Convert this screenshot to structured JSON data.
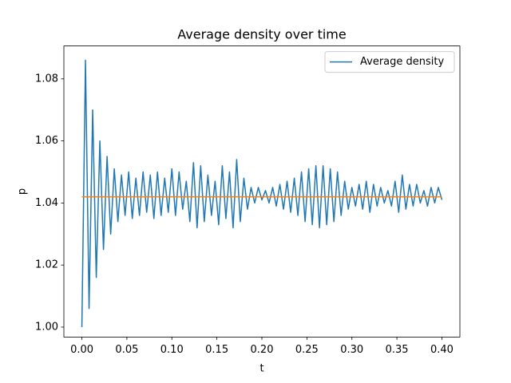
{
  "chart_data": {
    "type": "line",
    "title": "Average density over time",
    "xlabel": "t",
    "ylabel": "p",
    "xlim": [
      -0.02,
      0.42
    ],
    "ylim": [
      0.9968,
      1.0906
    ],
    "grid": false,
    "legend": "upper right",
    "xticks": [
      {
        "value": 0,
        "label": "0.00"
      },
      {
        "value": 0.05,
        "label": "0.05"
      },
      {
        "value": 0.1,
        "label": "0.10"
      },
      {
        "value": 0.15,
        "label": "0.15"
      },
      {
        "value": 0.2,
        "label": "0.20"
      },
      {
        "value": 0.25,
        "label": "0.25"
      },
      {
        "value": 0.3,
        "label": "0.30"
      },
      {
        "value": 0.35,
        "label": "0.35"
      },
      {
        "value": 0.4,
        "label": "0.40"
      }
    ],
    "yticks": [
      {
        "value": 1,
        "label": "1.00"
      },
      1.02,
      1.04,
      1.06,
      1.08
    ],
    "series": [
      {
        "name": "Average density",
        "color": "#1f77b4",
        "x": [
          0,
          0.004,
          0.008,
          0.012,
          0.016,
          0.02,
          0.024,
          0.028,
          0.032,
          0.036,
          0.04,
          0.044,
          0.048,
          0.052,
          0.056,
          0.06,
          0.064,
          0.068,
          0.072,
          0.076,
          0.08,
          0.084,
          0.088,
          0.092,
          0.096,
          0.1,
          0.104,
          0.108,
          0.112,
          0.116,
          0.12,
          0.124,
          0.128,
          0.132,
          0.136,
          0.14,
          0.144,
          0.148,
          0.152,
          0.156,
          0.16,
          0.164,
          0.168,
          0.172,
          0.176,
          0.18,
          0.184,
          0.188,
          0.192,
          0.196,
          0.2,
          0.204,
          0.208,
          0.212,
          0.216,
          0.22,
          0.224,
          0.228,
          0.232,
          0.236,
          0.24,
          0.244,
          0.248,
          0.252,
          0.256,
          0.26,
          0.264,
          0.268,
          0.272,
          0.276,
          0.28,
          0.284,
          0.288,
          0.292,
          0.296,
          0.3,
          0.304,
          0.308,
          0.312,
          0.316,
          0.32,
          0.324,
          0.328,
          0.332,
          0.336,
          0.34,
          0.344,
          0.348,
          0.352,
          0.356,
          0.36,
          0.364,
          0.368,
          0.372,
          0.376,
          0.38,
          0.384,
          0.388,
          0.392,
          0.396,
          0.4
        ],
        "values": [
          1.0,
          1.086,
          1.006,
          1.07,
          1.016,
          1.06,
          1.025,
          1.055,
          1.03,
          1.051,
          1.034,
          1.049,
          1.036,
          1.05,
          1.035,
          1.048,
          1.036,
          1.05,
          1.037,
          1.049,
          1.035,
          1.05,
          1.036,
          1.048,
          1.037,
          1.051,
          1.036,
          1.05,
          1.038,
          1.047,
          1.034,
          1.053,
          1.032,
          1.052,
          1.034,
          1.049,
          1.036,
          1.047,
          1.033,
          1.052,
          1.035,
          1.05,
          1.032,
          1.054,
          1.034,
          1.048,
          1.038,
          1.045,
          1.04,
          1.045,
          1.041,
          1.044,
          1.04,
          1.045,
          1.039,
          1.046,
          1.038,
          1.047,
          1.037,
          1.048,
          1.036,
          1.05,
          1.034,
          1.051,
          1.033,
          1.052,
          1.032,
          1.052,
          1.033,
          1.051,
          1.034,
          1.05,
          1.036,
          1.047,
          1.038,
          1.045,
          1.039,
          1.046,
          1.038,
          1.047,
          1.037,
          1.046,
          1.039,
          1.045,
          1.04,
          1.044,
          1.039,
          1.047,
          1.037,
          1.049,
          1.038,
          1.046,
          1.039,
          1.046,
          1.04,
          1.044,
          1.039,
          1.045,
          1.04,
          1.045,
          1.041
        ]
      },
      {
        "color": "#ff7f0e",
        "x": [
          0,
          0.4
        ],
        "values": [
          1.042,
          1.042
        ]
      }
    ]
  }
}
